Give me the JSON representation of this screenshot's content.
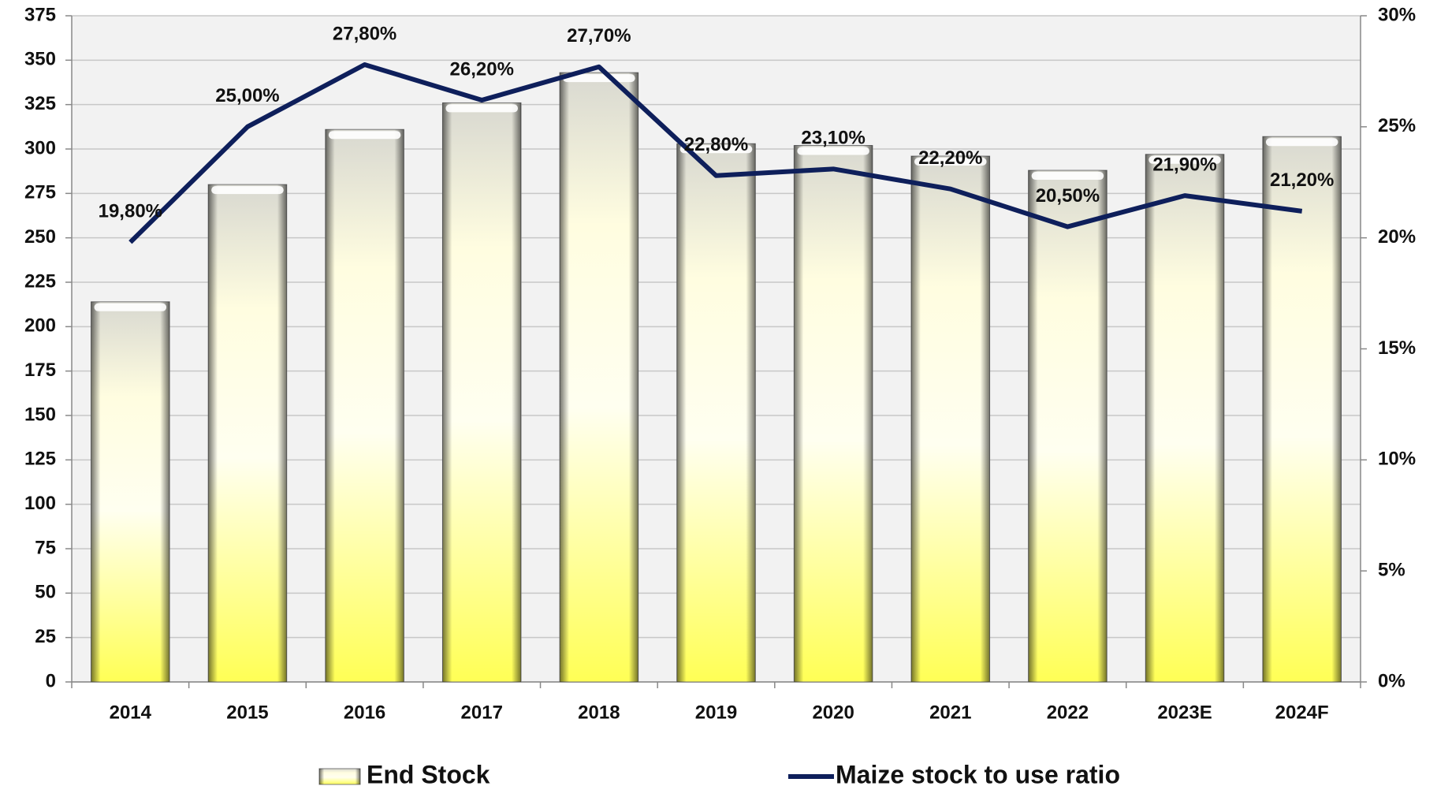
{
  "chart_data": {
    "type": "bar_line",
    "categories": [
      "2014",
      "2015",
      "2016",
      "2017",
      "2018",
      "2019",
      "2020",
      "2021",
      "2022",
      "2023E",
      "2024F"
    ],
    "series": [
      {
        "name": "End Stock",
        "type": "bar",
        "color": "#ffff66",
        "values": [
          214,
          280,
          311,
          326,
          343,
          303,
          302,
          296,
          288,
          297,
          307
        ]
      },
      {
        "name": "Maize stock to use ratio",
        "type": "line",
        "axis": "y2",
        "color": "#0e1f5b",
        "values": [
          19.8,
          25.0,
          27.8,
          26.2,
          27.7,
          22.8,
          23.1,
          22.2,
          20.5,
          21.9,
          21.2
        ],
        "value_labels": [
          "19,80%",
          "25,00%",
          "27,80%",
          "26,20%",
          "27,70%",
          "22,80%",
          "23,10%",
          "22,20%",
          "20,50%",
          "21,90%",
          "21,20%"
        ]
      }
    ],
    "ylim": [
      0,
      375
    ],
    "yticks": [
      0,
      25,
      50,
      75,
      100,
      125,
      150,
      175,
      200,
      225,
      250,
      275,
      300,
      325,
      350,
      375
    ],
    "y2lim": [
      0,
      30
    ],
    "y2ticks": [
      {
        "value": 0,
        "label": "0%"
      },
      {
        "value": 5,
        "label": "5%"
      },
      {
        "value": 10,
        "label": "10%"
      },
      {
        "value": 15,
        "label": "15%"
      },
      {
        "value": 20,
        "label": "20%"
      },
      {
        "value": 25,
        "label": "25%"
      },
      {
        "value": 30,
        "label": "30%"
      }
    ],
    "grid": true,
    "legend": "bottom"
  }
}
